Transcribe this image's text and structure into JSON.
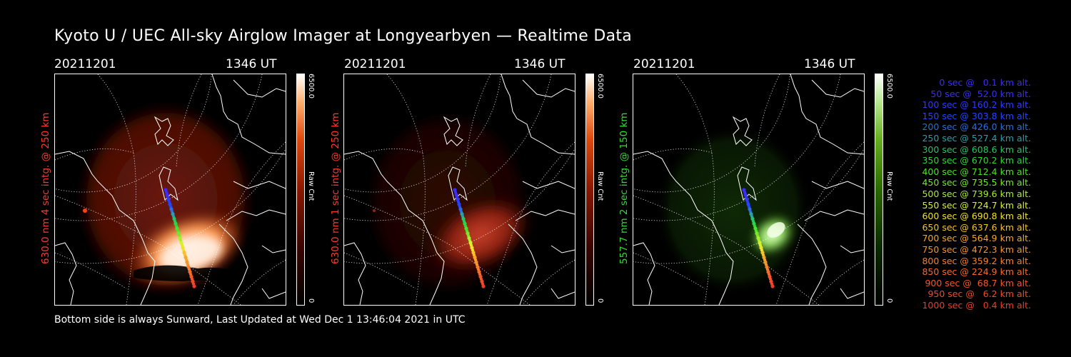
{
  "title": "Kyoto U / UEC All-sky Airglow Imager at Longyearbyen — Realtime Data",
  "footer": "Bottom side is always Sunward, Last Updated at Wed Dec  1 13:46:04 2021 in UTC",
  "panels": [
    {
      "date": "20211201",
      "time": "1346 UT",
      "side_label": "630.0 nm 4 sec intg. @ 250 km",
      "color_max": "6500.0",
      "color_min": "0",
      "color_unit": "Raw Cnt",
      "label_color": "#ff3a2a",
      "colormap": "red"
    },
    {
      "date": "20211201",
      "time": "1346 UT",
      "side_label": "630.0 nm 1 sec intg. @ 250 km",
      "color_max": "6500.0",
      "color_min": "0",
      "color_unit": "Raw Cnt",
      "label_color": "#ff3a2a",
      "colormap": "red"
    },
    {
      "date": "20211201",
      "time": "1346 UT",
      "side_label": "557.7 nm 2 sec intg. @ 150 km",
      "color_max": "6500.0",
      "color_min": "0",
      "color_unit": "Raw Cnt",
      "label_color": "#33dd33",
      "colormap": "green"
    }
  ],
  "legend": [
    {
      "text": "0 sec @   0.1 km alt.",
      "color": "#3b2bff"
    },
    {
      "text": "50 sec @  52.0 km alt.",
      "color": "#3b2bff"
    },
    {
      "text": "100 sec @ 160.2 km alt.",
      "color": "#2d3bff"
    },
    {
      "text": "150 sec @ 303.8 km alt.",
      "color": "#2347ff"
    },
    {
      "text": "200 sec @ 426.0 km alt.",
      "color": "#2a6ee0"
    },
    {
      "text": "250 sec @ 527.4 km alt.",
      "color": "#2aa0a8"
    },
    {
      "text": "300 sec @ 608.6 km alt.",
      "color": "#27c46a"
    },
    {
      "text": "350 sec @ 670.2 km alt.",
      "color": "#2ed63a"
    },
    {
      "text": "400 sec @ 712.4 km alt.",
      "color": "#4fe02a"
    },
    {
      "text": "450 sec @ 735.5 km alt.",
      "color": "#7ae62a"
    },
    {
      "text": "500 sec @ 739.6 km alt.",
      "color": "#a8ee2a"
    },
    {
      "text": "550 sec @ 724.7 km alt.",
      "color": "#d6f02a"
    },
    {
      "text": "600 sec @ 690.8 km alt.",
      "color": "#f2e02a"
    },
    {
      "text": "650 sec @ 637.6 km alt.",
      "color": "#f7c22a"
    },
    {
      "text": "700 sec @ 564.9 km alt.",
      "color": "#f7a82a"
    },
    {
      "text": "750 sec @ 472.3 km alt.",
      "color": "#f7942a"
    },
    {
      "text": "800 sec @ 359.2 km alt.",
      "color": "#f7802a"
    },
    {
      "text": "850 sec @ 224.9 km alt.",
      "color": "#f56c2a"
    },
    {
      "text": "900 sec @  68.7 km alt.",
      "color": "#f2582a"
    },
    {
      "text": "950 sec @   6.2 km alt.",
      "color": "#ef4a2a"
    },
    {
      "text": "1000 sec @   0.4 km alt.",
      "color": "#ec3c2a"
    }
  ]
}
